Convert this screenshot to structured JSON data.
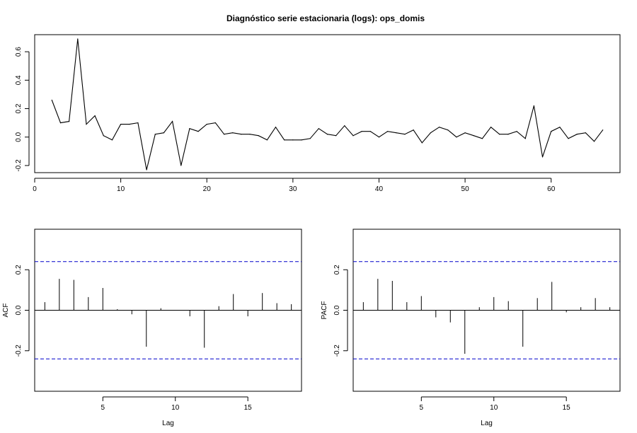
{
  "chart_data": [
    {
      "type": "line",
      "title": "Diagnóstico serie estacionaria (logs): ops_domis",
      "xlabel": "",
      "ylabel": "",
      "xlim": [
        0,
        68
      ],
      "ylim": [
        -0.25,
        0.72
      ],
      "xticks": [
        0,
        10,
        20,
        30,
        40,
        50,
        60
      ],
      "yticks": [
        -0.2,
        0.0,
        0.2,
        0.4,
        0.6
      ],
      "ytick_labels": [
        "-0.2",
        "0.0",
        "0.2",
        "0.4",
        "0.6"
      ],
      "grid": false,
      "series_color": "#000000",
      "x": [
        2,
        3,
        4,
        5,
        6,
        7,
        8,
        9,
        10,
        11,
        12,
        13,
        14,
        15,
        16,
        17,
        18,
        19,
        20,
        21,
        22,
        23,
        24,
        25,
        26,
        27,
        28,
        29,
        30,
        31,
        32,
        33,
        34,
        35,
        36,
        37,
        38,
        39,
        40,
        41,
        42,
        43,
        44,
        45,
        46,
        47,
        48,
        49,
        50,
        51,
        52,
        53,
        54,
        55,
        56,
        57,
        58,
        59,
        60,
        61,
        62,
        63,
        64,
        65,
        66
      ],
      "values": [
        0.26,
        0.1,
        0.11,
        0.69,
        0.09,
        0.15,
        0.01,
        -0.02,
        0.09,
        0.09,
        0.1,
        -0.23,
        0.02,
        0.03,
        0.11,
        -0.2,
        0.06,
        0.04,
        0.09,
        0.1,
        0.02,
        0.03,
        0.02,
        0.02,
        0.01,
        -0.02,
        0.07,
        -0.02,
        -0.02,
        -0.02,
        -0.01,
        0.06,
        0.02,
        0.01,
        0.08,
        0.01,
        0.04,
        0.04,
        0.0,
        0.04,
        0.03,
        0.02,
        0.05,
        -0.04,
        0.03,
        0.07,
        0.05,
        0.0,
        0.03,
        0.01,
        -0.01,
        0.07,
        0.02,
        0.02,
        0.04,
        -0.01,
        0.22,
        -0.14,
        0.04,
        0.07,
        -0.01,
        0.02,
        0.03,
        -0.03,
        0.05
      ]
    },
    {
      "type": "bar",
      "title": "",
      "xlabel": "Lag",
      "ylabel": "ACF",
      "xlim": [
        0.3,
        18.7
      ],
      "ylim": [
        -0.4,
        0.4
      ],
      "xticks": [
        5,
        10,
        15
      ],
      "yticks": [
        -0.2,
        0.0,
        0.2
      ],
      "ytick_labels": [
        "-0.2",
        "0.0",
        "0.2"
      ],
      "grid": false,
      "ci": 0.24,
      "ci_color": "#0000cc",
      "lags": [
        1,
        2,
        3,
        4,
        5,
        6,
        7,
        8,
        9,
        10,
        11,
        12,
        13,
        14,
        15,
        16,
        17,
        18
      ],
      "values": [
        0.04,
        0.155,
        0.15,
        0.065,
        0.11,
        0.005,
        -0.02,
        -0.18,
        0.01,
        0.0,
        -0.03,
        -0.185,
        0.02,
        0.08,
        -0.03,
        0.085,
        0.035,
        0.03
      ]
    },
    {
      "type": "bar",
      "title": "",
      "xlabel": "Lag",
      "ylabel": "PACF",
      "xlim": [
        0.3,
        18.7
      ],
      "ylim": [
        -0.4,
        0.4
      ],
      "xticks": [
        5,
        10,
        15
      ],
      "yticks": [
        -0.2,
        0.0,
        0.2
      ],
      "ytick_labels": [
        "-0.2",
        "0.0",
        "0.2"
      ],
      "grid": false,
      "ci": 0.24,
      "ci_color": "#0000cc",
      "lags": [
        1,
        2,
        3,
        4,
        5,
        6,
        7,
        8,
        9,
        10,
        11,
        12,
        13,
        14,
        15,
        16,
        17,
        18
      ],
      "values": [
        0.04,
        0.155,
        0.145,
        0.04,
        0.07,
        -0.035,
        -0.06,
        -0.215,
        0.015,
        0.065,
        0.045,
        -0.18,
        0.06,
        0.14,
        -0.01,
        0.015,
        0.06,
        0.015
      ]
    }
  ]
}
